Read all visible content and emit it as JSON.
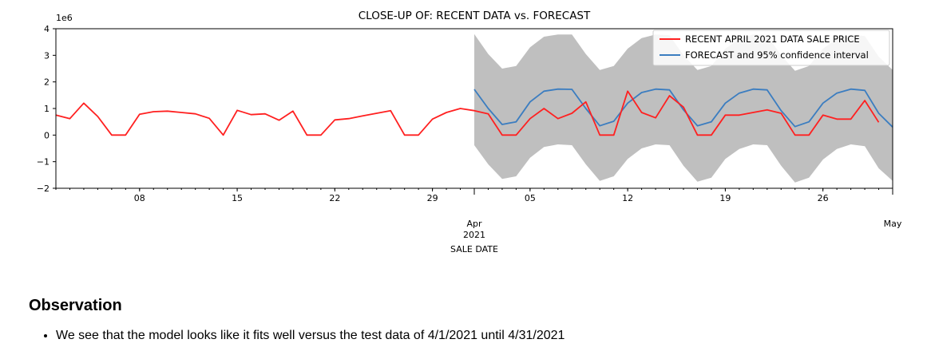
{
  "chart_data": {
    "type": "line",
    "title": "CLOSE-UP OF: RECENT DATA vs. FORECAST",
    "xlabel": "SALE DATE",
    "ylabel": "",
    "y_offset_label": "1e6",
    "ylim": [
      -2,
      4
    ],
    "xlim": [
      "2021-03-02",
      "2021-05-01"
    ],
    "yticks": [
      -2,
      -1,
      0,
      1,
      2,
      3,
      4
    ],
    "ytick_labels": [
      "−2",
      "−1",
      "0",
      "1",
      "2",
      "3",
      "4"
    ],
    "xticks": [
      {
        "date": "2021-03-08",
        "label": "08"
      },
      {
        "date": "2021-03-15",
        "label": "15"
      },
      {
        "date": "2021-03-22",
        "label": "22"
      },
      {
        "date": "2021-03-29",
        "label": "29"
      },
      {
        "date": "2021-04-05",
        "label": "05"
      },
      {
        "date": "2021-04-12",
        "label": "12"
      },
      {
        "date": "2021-04-19",
        "label": "19"
      },
      {
        "date": "2021-04-26",
        "label": "26"
      }
    ],
    "major_xticks": [
      {
        "date": "2021-04-01",
        "label": "Apr",
        "sublabel": "2021"
      },
      {
        "date": "2021-05-01",
        "label": "May"
      }
    ],
    "legend_position": "top-right",
    "series": [
      {
        "name": "RECENT APRIL 2021 DATA SALE PRICE",
        "color": "#ff2020",
        "x": [
          "2021-03-02",
          "2021-03-03",
          "2021-03-04",
          "2021-03-05",
          "2021-03-06",
          "2021-03-07",
          "2021-03-08",
          "2021-03-09",
          "2021-03-10",
          "2021-03-11",
          "2021-03-12",
          "2021-03-13",
          "2021-03-14",
          "2021-03-15",
          "2021-03-16",
          "2021-03-17",
          "2021-03-18",
          "2021-03-19",
          "2021-03-20",
          "2021-03-21",
          "2021-03-22",
          "2021-03-23",
          "2021-03-24",
          "2021-03-25",
          "2021-03-26",
          "2021-03-27",
          "2021-03-28",
          "2021-03-29",
          "2021-03-30",
          "2021-03-31",
          "2021-04-01",
          "2021-04-02",
          "2021-04-03",
          "2021-04-04",
          "2021-04-05",
          "2021-04-06",
          "2021-04-07",
          "2021-04-08",
          "2021-04-09",
          "2021-04-10",
          "2021-04-11",
          "2021-04-12",
          "2021-04-13",
          "2021-04-14",
          "2021-04-15",
          "2021-04-16",
          "2021-04-17",
          "2021-04-18",
          "2021-04-19",
          "2021-04-20",
          "2021-04-21",
          "2021-04-22",
          "2021-04-23",
          "2021-04-24",
          "2021-04-25",
          "2021-04-26",
          "2021-04-27",
          "2021-04-28",
          "2021-04-29",
          "2021-04-30"
        ],
        "values": [
          0.75,
          0.62,
          1.2,
          0.7,
          0.0,
          0.0,
          0.78,
          0.88,
          0.9,
          0.85,
          0.8,
          0.63,
          0.0,
          0.93,
          0.77,
          0.8,
          0.56,
          0.9,
          0.0,
          0.0,
          0.57,
          0.62,
          0.72,
          0.82,
          0.92,
          0.0,
          0.0,
          0.6,
          0.85,
          1.0,
          0.92,
          0.8,
          0.0,
          0.0,
          0.62,
          1.0,
          0.62,
          0.82,
          1.25,
          0.0,
          0.0,
          1.65,
          0.85,
          0.65,
          1.48,
          1.05,
          0.0,
          0.0,
          0.75,
          0.75,
          0.85,
          0.95,
          0.82,
          0.0,
          0.0,
          0.75,
          0.6,
          0.6,
          1.3,
          0.48
        ]
      },
      {
        "name": "FORECAST and 95% confidence interval",
        "color": "#3b7dc0",
        "x": [
          "2021-04-01",
          "2021-04-02",
          "2021-04-03",
          "2021-04-04",
          "2021-04-05",
          "2021-04-06",
          "2021-04-07",
          "2021-04-08",
          "2021-04-09",
          "2021-04-10",
          "2021-04-11",
          "2021-04-12",
          "2021-04-13",
          "2021-04-14",
          "2021-04-15",
          "2021-04-16",
          "2021-04-17",
          "2021-04-18",
          "2021-04-19",
          "2021-04-20",
          "2021-04-21",
          "2021-04-22",
          "2021-04-23",
          "2021-04-24",
          "2021-04-25",
          "2021-04-26",
          "2021-04-27",
          "2021-04-28",
          "2021-04-29",
          "2021-04-30",
          "2021-05-01"
        ],
        "values": [
          1.72,
          1.0,
          0.4,
          0.5,
          1.25,
          1.65,
          1.73,
          1.72,
          1.0,
          0.35,
          0.52,
          1.2,
          1.6,
          1.73,
          1.7,
          0.95,
          0.35,
          0.5,
          1.2,
          1.58,
          1.73,
          1.7,
          0.92,
          0.32,
          0.5,
          1.2,
          1.58,
          1.73,
          1.68,
          0.82,
          0.3
        ],
        "ci_upper": [
          3.8,
          3.05,
          2.5,
          2.6,
          3.3,
          3.7,
          3.78,
          3.78,
          3.05,
          2.45,
          2.6,
          3.25,
          3.65,
          3.78,
          3.75,
          3.0,
          2.45,
          2.6,
          3.25,
          3.62,
          3.78,
          3.75,
          3.0,
          2.42,
          2.6,
          3.25,
          3.62,
          3.78,
          3.72,
          2.95,
          2.45
        ],
        "ci_lower": [
          -0.38,
          -1.1,
          -1.65,
          -1.55,
          -0.85,
          -0.45,
          -0.35,
          -0.38,
          -1.1,
          -1.72,
          -1.55,
          -0.9,
          -0.5,
          -0.35,
          -0.38,
          -1.15,
          -1.75,
          -1.6,
          -0.9,
          -0.52,
          -0.35,
          -0.38,
          -1.15,
          -1.78,
          -1.6,
          -0.92,
          -0.52,
          -0.35,
          -0.42,
          -1.25,
          -1.72
        ]
      }
    ]
  },
  "observation": {
    "heading": "Observation",
    "bullets": [
      "We see that the model looks like it fits well versus the test data of 4/1/2021 until 4/31/2021"
    ]
  }
}
